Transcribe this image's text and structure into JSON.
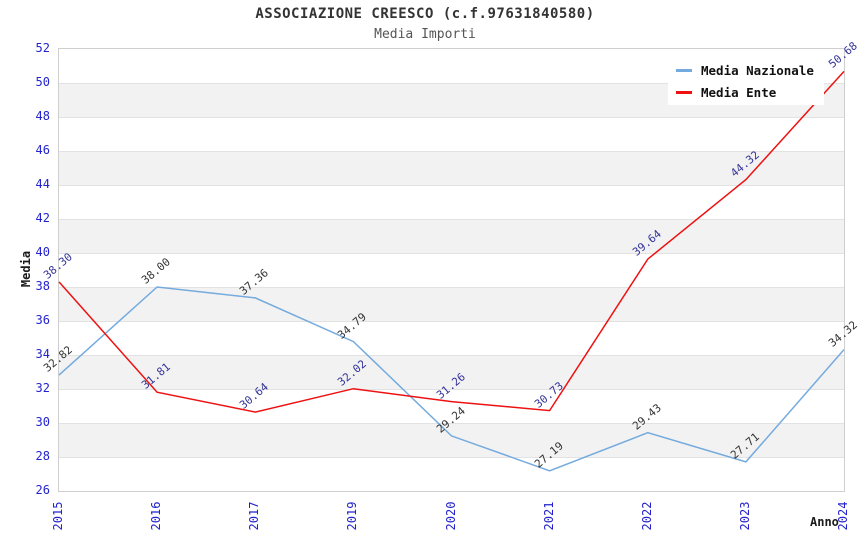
{
  "chart_data": {
    "type": "line",
    "title": "ASSOCIAZIONE CREESCO (c.f.97631840580)",
    "subtitle": "Media Importi",
    "xlabel": "Anno",
    "ylabel": "Media",
    "categories": [
      "2015",
      "2016",
      "2017",
      "2019",
      "2020",
      "2021",
      "2022",
      "2023",
      "2024"
    ],
    "ylim": [
      26,
      52
    ],
    "ytick_step": 2,
    "ytick_labels": [
      "52",
      "50",
      "48",
      "46",
      "44",
      "42",
      "40",
      "38",
      "36",
      "34",
      "32",
      "30",
      "28",
      "26"
    ],
    "grid": "alternating-horizontal-bands",
    "legend_position": "top-right-inside",
    "series": [
      {
        "name": "Media Nazionale",
        "color": "#74aadd",
        "label_color": "#333333",
        "values": [
          32.82,
          38.0,
          37.36,
          34.79,
          29.24,
          27.19,
          29.43,
          27.71,
          34.32
        ]
      },
      {
        "name": "Media Ente",
        "color": "#ee1111",
        "label_color": "#333399",
        "values": [
          38.3,
          31.81,
          30.64,
          32.02,
          31.26,
          30.73,
          39.64,
          44.32,
          50.68
        ]
      }
    ],
    "colors": {
      "band_alt": "#f2f2f2",
      "gridline": "#e2e2e2",
      "tick_label": "#2323cd",
      "plot_border": "#cfcfcf"
    }
  }
}
